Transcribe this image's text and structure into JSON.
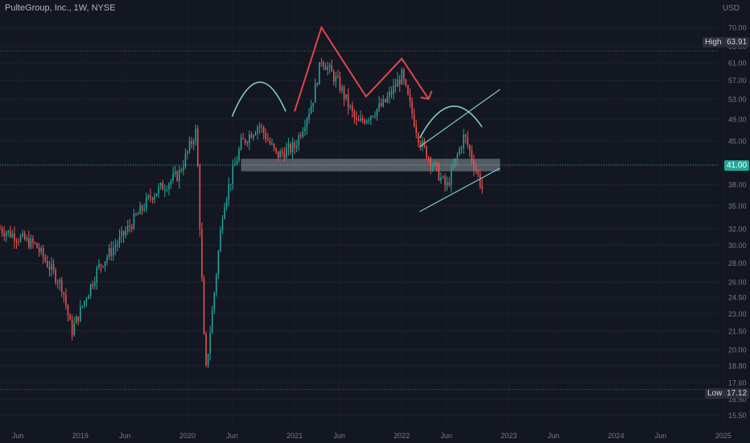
{
  "header": {
    "symbol_title": "PulteGroup, Inc., 1W, NYSE"
  },
  "axis": {
    "currency": "USD"
  },
  "markers": {
    "high_label": "High",
    "high_value": "63.91",
    "low_label": "Low",
    "low_value": "17.12",
    "current_value": "41.00"
  },
  "colors": {
    "up": "#26a69a",
    "down": "#ef5350",
    "background": "#131722",
    "drawing_red": "#e0464a",
    "drawing_teal": "#80cbc4",
    "zone": "#cfd8dc"
  },
  "chart_data": {
    "type": "candlestick",
    "title": "PulteGroup, Inc., 1W, NYSE",
    "y_scale": "log",
    "ylim": [
      14.9,
      75.0
    ],
    "y_ticks": [
      "70.00",
      "65.00",
      "61.00",
      "57.00",
      "53.00",
      "49.00",
      "45.00",
      "41.00",
      "38.00",
      "35.00",
      "32.00",
      "30.00",
      "28.00",
      "26.00",
      "24.50",
      "23.00",
      "21.50",
      "20.00",
      "18.80",
      "17.60",
      "16.50",
      "15.50"
    ],
    "x_ticks": [
      "Jun",
      "2019",
      "Jun",
      "2020",
      "Jun",
      "2021",
      "Jun",
      "2022",
      "Jun",
      "2023",
      "Jun",
      "2024",
      "Jun",
      "2025"
    ],
    "x_range": [
      "2018-04",
      "2025-04"
    ],
    "price_path": [
      [
        "2018-04",
        32.0
      ],
      [
        "2018-08",
        30.0
      ],
      [
        "2018-11",
        25.5
      ],
      [
        "2018-12",
        21.4
      ],
      [
        "2019-03",
        27.5
      ],
      [
        "2019-06",
        31.5
      ],
      [
        "2019-09",
        36.5
      ],
      [
        "2019-12",
        39.5
      ],
      [
        "2020-02",
        47.0
      ],
      [
        "2020-03",
        18.0
      ],
      [
        "2020-04",
        25.0
      ],
      [
        "2020-05",
        35.0
      ],
      [
        "2020-07",
        44.5
      ],
      [
        "2020-09",
        48.0
      ],
      [
        "2020-11",
        42.5
      ],
      [
        "2021-01",
        44.0
      ],
      [
        "2021-03",
        52.5
      ],
      [
        "2021-04",
        62.0
      ],
      [
        "2021-06",
        56.0
      ],
      [
        "2021-08",
        48.0
      ],
      [
        "2021-11",
        52.0
      ],
      [
        "2022-01",
        58.0
      ],
      [
        "2022-03",
        45.0
      ],
      [
        "2022-06",
        37.5
      ],
      [
        "2022-08",
        46.0
      ],
      [
        "2022-10",
        37.5
      ]
    ],
    "annotations": {
      "resistance_zone": [
        40.0,
        42.0
      ],
      "double_top_peaks": [
        [
          "2021-04",
          70.0
        ],
        [
          "2022-01",
          62.0
        ]
      ],
      "channel_upper": [
        [
          "2022-03",
          44.0
        ],
        [
          "2022-12",
          55.0
        ]
      ],
      "channel_lower": [
        [
          "2022-03",
          34.2
        ],
        [
          "2022-12",
          40.5
        ]
      ]
    }
  }
}
